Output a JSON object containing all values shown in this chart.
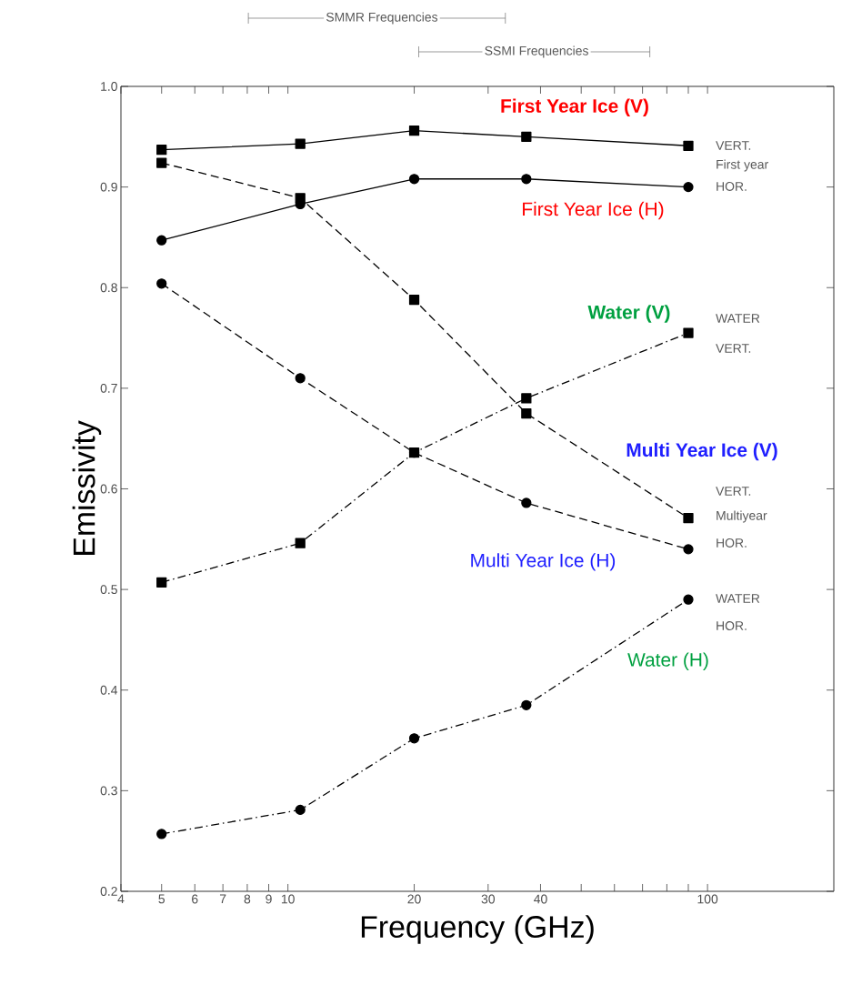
{
  "chart_data": {
    "type": "line",
    "xlabel": "Frequency (GHz)",
    "ylabel": "Emissivity",
    "log": "x",
    "xlim": [
      4,
      200
    ],
    "ylim": [
      0.2,
      1.0
    ],
    "xticks": [
      4,
      5,
      6,
      7,
      8,
      9,
      10,
      20,
      30,
      40,
      {
        "value": 50,
        "label": null
      },
      {
        "value": 60,
        "label": null
      },
      {
        "value": 70,
        "label": null
      },
      {
        "value": 80,
        "label": null
      },
      {
        "value": 90,
        "label": null
      },
      100
    ],
    "yticks": [
      {
        "value": 0.2,
        "label": "0.2"
      },
      {
        "value": 0.3,
        "label": "0.3"
      },
      {
        "value": 0.4,
        "label": "0.4"
      },
      {
        "value": 0.5,
        "label": "0.5"
      },
      {
        "value": 0.6,
        "label": "0.6"
      },
      {
        "value": 0.7,
        "label": "0.7"
      },
      {
        "value": 0.8,
        "label": "0.8"
      },
      {
        "value": 0.9,
        "label": "0.9"
      },
      {
        "value": 1.0,
        "label": "1.0"
      }
    ],
    "x": [
      5,
      10.7,
      20,
      37,
      90
    ],
    "series": [
      {
        "name": "First Year Ice (V)",
        "color": "#000000",
        "marker": "square",
        "line_style": "solid",
        "values": [
          0.937,
          0.943,
          0.956,
          0.95,
          0.941
        ]
      },
      {
        "name": "First Year Ice (H)",
        "color": "#000000",
        "marker": "circle",
        "line_style": "solid",
        "values": [
          0.847,
          0.883,
          0.908,
          0.908,
          0.9
        ]
      },
      {
        "name": "Multi Year Ice (V)",
        "color": "#000000",
        "marker": "square",
        "line_style": "dashed",
        "values": [
          0.924,
          0.889,
          0.788,
          0.675,
          0.571
        ]
      },
      {
        "name": "Multi Year Ice (H)",
        "color": "#000000",
        "marker": "circle",
        "line_style": "dashed",
        "values": [
          0.804,
          0.71,
          0.636,
          0.586,
          0.54
        ]
      },
      {
        "name": "Water (V)",
        "color": "#000000",
        "marker": "square",
        "line_style": "dashdot",
        "values": [
          0.507,
          0.546,
          0.636,
          0.69,
          0.755
        ]
      },
      {
        "name": "Water (H)",
        "color": "#000000",
        "marker": "circle",
        "line_style": "dashdot",
        "values": [
          0.257,
          0.281,
          0.352,
          0.385,
          0.49
        ]
      }
    ],
    "annotations": [
      "SMMR Frequencies",
      "SSMI Frequencies",
      "VERT.",
      "First year",
      "HOR.",
      "WATER",
      "VERT.",
      "VERT.",
      "Multiyear",
      "HOR.",
      "WATER",
      "HOR."
    ]
  }
}
